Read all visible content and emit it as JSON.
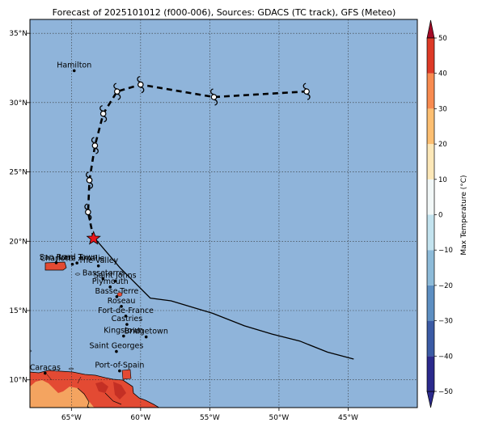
{
  "title": "Forecast of 2025101012 (f000-006), Sources: GDACS (TC track), GFS (Meteo)",
  "map": {
    "lon_range": [
      -68,
      -40
    ],
    "lat_range": [
      8,
      36
    ],
    "lon_ticks": [
      -65,
      -60,
      -55,
      -50,
      -45
    ],
    "lon_tick_labels": [
      "65°W",
      "60°W",
      "55°W",
      "50°W",
      "45°W"
    ],
    "lat_ticks": [
      10,
      15,
      20,
      25,
      30,
      35
    ],
    "lat_tick_labels": [
      "10°N",
      "15°N",
      "20°N",
      "25°N",
      "30°N",
      "35°N"
    ],
    "grid": true,
    "colors": {
      "ocean": "#8fb4da",
      "land_hot": "#e34a33",
      "land_warm": "#f4a460",
      "track_past": "#000000",
      "track_forecast": "#000000",
      "current_marker": "#e8141b"
    }
  },
  "cities": [
    {
      "name": "Hamilton",
      "lon": -64.8,
      "lat": 32.3
    },
    {
      "name": "San Juan",
      "lon": -66.1,
      "lat": 18.45
    },
    {
      "name": "Road Town",
      "lon": -64.6,
      "lat": 18.43
    },
    {
      "name": "Charlotte Amalie",
      "lon": -64.93,
      "lat": 18.34
    },
    {
      "name": "The Valley",
      "lon": -63.05,
      "lat": 18.22
    },
    {
      "name": "Basseterre",
      "lon": -62.72,
      "lat": 17.3
    },
    {
      "name": "Saint Johns",
      "lon": -61.85,
      "lat": 17.12
    },
    {
      "name": "Plymouth",
      "lon": -62.2,
      "lat": 16.7
    },
    {
      "name": "Basse-Terre",
      "lon": -61.72,
      "lat": 16.0
    },
    {
      "name": "Roseau",
      "lon": -61.39,
      "lat": 15.3
    },
    {
      "name": "Fort-de-France",
      "lon": -61.07,
      "lat": 14.6
    },
    {
      "name": "Castries",
      "lon": -60.99,
      "lat": 14.0
    },
    {
      "name": "Kingstown",
      "lon": -61.23,
      "lat": 13.16
    },
    {
      "name": "Bridgetown",
      "lon": -59.6,
      "lat": 13.1
    },
    {
      "name": "Saint Georges",
      "lon": -61.75,
      "lat": 12.05
    },
    {
      "name": "Port-of-Spain",
      "lon": -61.52,
      "lat": 10.65
    },
    {
      "name": "Caracas",
      "lon": -66.9,
      "lat": 10.48
    }
  ],
  "past_track": [
    {
      "lon": -44.6,
      "lat": 11.5
    },
    {
      "lon": -46.5,
      "lat": 12.0
    },
    {
      "lon": -48.5,
      "lat": 12.8
    },
    {
      "lon": -50.5,
      "lat": 13.3
    },
    {
      "lon": -52.5,
      "lat": 13.9
    },
    {
      "lon": -54.8,
      "lat": 14.8
    },
    {
      "lon": -57.8,
      "lat": 15.7
    },
    {
      "lon": -59.3,
      "lat": 15.9
    },
    {
      "lon": -61.5,
      "lat": 18.1
    },
    {
      "lon": -63.3,
      "lat": 20.2
    }
  ],
  "current_position": {
    "lon": -63.4,
    "lat": 20.2
  },
  "forecast_track": [
    {
      "lon": -63.4,
      "lat": 20.2
    },
    {
      "lon": -63.8,
      "lat": 22.1
    },
    {
      "lon": -63.7,
      "lat": 24.4
    },
    {
      "lon": -63.3,
      "lat": 26.9
    },
    {
      "lon": -62.7,
      "lat": 29.2
    },
    {
      "lon": -61.7,
      "lat": 30.8
    },
    {
      "lon": -60.0,
      "lat": 31.3
    },
    {
      "lon": -54.7,
      "lat": 30.4
    },
    {
      "lon": -48.0,
      "lat": 30.8
    }
  ],
  "colorbar": {
    "label": "Max Temperature (°C)",
    "tick_labels": [
      "−50",
      "−40",
      "−30",
      "−20",
      "−10",
      "0",
      "10",
      "20",
      "30",
      "40",
      "50"
    ],
    "colors": [
      "#2b2a8c",
      "#3b5ba5",
      "#5d8fc2",
      "#8dbbd9",
      "#c3e3ef",
      "#f2f8f8",
      "#fde8b8",
      "#fdbf72",
      "#f88b50",
      "#dd3a27",
      "#a30a26"
    ]
  }
}
